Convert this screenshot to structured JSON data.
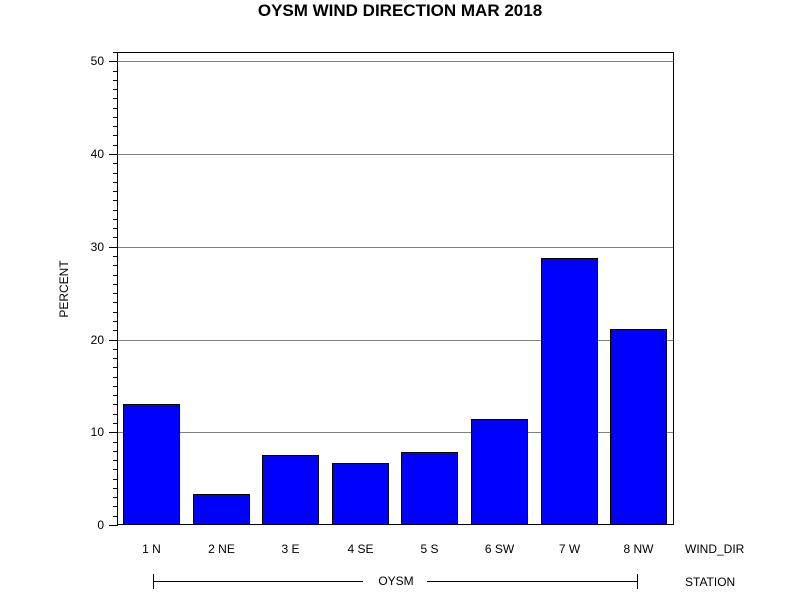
{
  "chart_data": {
    "type": "bar",
    "title": "OYSM WIND DIRECTION MAR 2018",
    "ylabel": "PERCENT",
    "categories": [
      "1 N",
      "2 NE",
      "3 E",
      "4 SE",
      "5 S",
      "6 SW",
      "7 W",
      "8 NW"
    ],
    "values": [
      13.1,
      3.3,
      7.5,
      6.7,
      7.9,
      11.4,
      28.8,
      21.1
    ],
    "ylim": [
      0,
      51
    ],
    "yticks": [
      "0",
      "10",
      "20",
      "30",
      "40",
      "50"
    ],
    "grid": true,
    "bar_color": "#0000FF",
    "x_group_label": "WIND_DIR",
    "station_label": "STATION",
    "station_value": "OYSM"
  }
}
